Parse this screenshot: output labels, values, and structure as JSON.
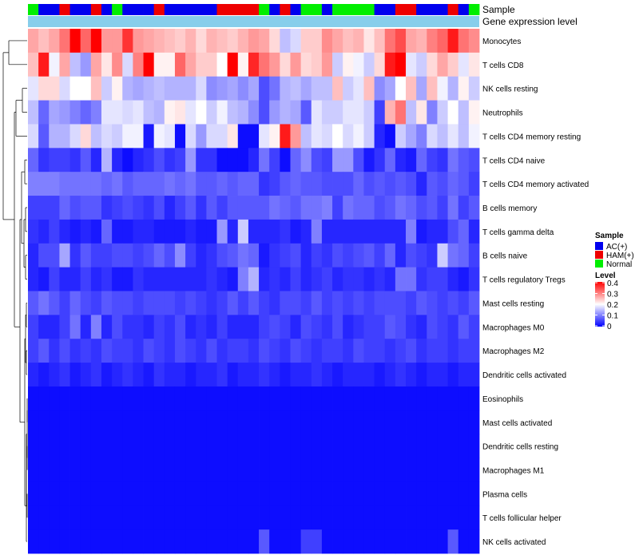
{
  "chart_data": {
    "type": "heatmap",
    "annotation_tracks": [
      "Sample",
      "Gene expression level"
    ],
    "sample_types": [
      "AC(+)",
      "HAM(+)",
      "Normal"
    ],
    "colors": {
      "AC(+)": "#0000ee",
      "HAM(+)": "#ee0000",
      "Normal": "#00ee00",
      "gene_expression": "#87ceeb",
      "scale_low": "#0000ff",
      "scale_mid": "#ffffff",
      "scale_high": "#ff0000"
    },
    "samples": [
      "Normal",
      "AC(+)",
      "AC(+)",
      "HAM(+)",
      "AC(+)",
      "AC(+)",
      "HAM(+)",
      "AC(+)",
      "Normal",
      "AC(+)",
      "AC(+)",
      "AC(+)",
      "HAM(+)",
      "AC(+)",
      "AC(+)",
      "AC(+)",
      "AC(+)",
      "AC(+)",
      "HAM(+)",
      "HAM(+)",
      "HAM(+)",
      "HAM(+)",
      "Normal",
      "AC(+)",
      "HAM(+)",
      "AC(+)",
      "Normal",
      "Normal",
      "AC(+)",
      "Normal",
      "Normal",
      "Normal",
      "Normal",
      "AC(+)",
      "AC(+)",
      "HAM(+)",
      "HAM(+)",
      "AC(+)",
      "AC(+)",
      "AC(+)",
      "HAM(+)",
      "AC(+)",
      "Normal"
    ],
    "rows": [
      "Monocytes",
      "T cells CD8",
      "NK cells resting",
      "Neutrophils",
      "T cells CD4 memory resting",
      "T cells CD4 naive",
      "T cells CD4 memory activated",
      "B cells memory",
      "T cells gamma delta",
      "B cells naive",
      "T cells regulatory  Tregs",
      "Mast cells resting",
      "Macrophages M0",
      "Macrophages M2",
      "Dendritic cells activated",
      "Eosinophils",
      "Mast cells activated",
      "Dendritic cells resting",
      "Macrophages M1",
      "Plasma cells",
      "T cells follicular helper",
      "NK cells activated"
    ],
    "values": [
      [
        0.27,
        0.25,
        0.27,
        0.31,
        0.4,
        0.32,
        0.4,
        0.28,
        0.28,
        0.36,
        0.28,
        0.27,
        0.26,
        0.25,
        0.24,
        0.26,
        0.23,
        0.26,
        0.25,
        0.24,
        0.26,
        0.28,
        0.27,
        0.23,
        0.15,
        0.17,
        0.24,
        0.24,
        0.29,
        0.27,
        0.25,
        0.26,
        0.22,
        0.25,
        0.31,
        0.34,
        0.27,
        0.26,
        0.3,
        0.32,
        0.38,
        0.31,
        0.29
      ],
      [
        0.25,
        0.38,
        0.19,
        0.27,
        0.15,
        0.12,
        0.27,
        0.22,
        0.29,
        0.17,
        0.3,
        0.4,
        0.21,
        0.21,
        0.32,
        0.27,
        0.24,
        0.24,
        0.2,
        0.4,
        0.21,
        0.37,
        0.31,
        0.28,
        0.23,
        0.28,
        0.23,
        0.24,
        0.28,
        0.16,
        0.21,
        0.19,
        0.16,
        0.23,
        0.38,
        0.4,
        0.18,
        0.16,
        0.23,
        0.27,
        0.24,
        0.18,
        0.22
      ],
      [
        0.18,
        0.23,
        0.23,
        0.17,
        0.2,
        0.2,
        0.25,
        0.16,
        0.21,
        0.14,
        0.13,
        0.14,
        0.15,
        0.14,
        0.14,
        0.14,
        0.17,
        0.11,
        0.12,
        0.13,
        0.11,
        0.13,
        0.06,
        0.09,
        0.14,
        0.15,
        0.13,
        0.15,
        0.15,
        0.25,
        0.16,
        0.18,
        0.25,
        0.11,
        0.13,
        0.2,
        0.25,
        0.13,
        0.25,
        0.19,
        0.14,
        0.21,
        0.16
      ],
      [
        0.15,
        0.08,
        0.13,
        0.12,
        0.1,
        0.08,
        0.1,
        0.18,
        0.18,
        0.17,
        0.18,
        0.15,
        0.14,
        0.21,
        0.22,
        0.18,
        0.2,
        0.16,
        0.19,
        0.15,
        0.14,
        0.11,
        0.06,
        0.12,
        0.14,
        0.13,
        0.07,
        0.18,
        0.16,
        0.16,
        0.18,
        0.18,
        0.16,
        0.05,
        0.26,
        0.31,
        0.15,
        0.22,
        0.1,
        0.16,
        0.2,
        0.15,
        0.21
      ],
      [
        0.17,
        0.07,
        0.14,
        0.14,
        0.17,
        0.23,
        0.15,
        0.17,
        0.16,
        0.19,
        0.19,
        0.02,
        0.19,
        0.18,
        0.01,
        0.17,
        0.12,
        0.17,
        0.17,
        0.22,
        0.01,
        0.01,
        0.18,
        0.21,
        0.38,
        0.28,
        0.15,
        0.18,
        0.17,
        0.2,
        0.17,
        0.19,
        0.16,
        0.03,
        0.01,
        0.16,
        0.13,
        0.1,
        0.17,
        0.15,
        0.18,
        0.15,
        0.19
      ],
      [
        0.08,
        0.04,
        0.05,
        0.05,
        0.04,
        0.07,
        0.03,
        0.14,
        0.03,
        0.01,
        0.03,
        0.04,
        0.06,
        0.04,
        0.05,
        0.12,
        0.04,
        0.04,
        0.01,
        0.01,
        0.01,
        0.03,
        0.09,
        0.05,
        0.01,
        0.08,
        0.11,
        0.06,
        0.05,
        0.12,
        0.12,
        0.06,
        0.02,
        0.04,
        0.08,
        0.03,
        0.02,
        0.08,
        0.05,
        0.04,
        0.09,
        0.07,
        0.06
      ],
      [
        0.1,
        0.1,
        0.1,
        0.09,
        0.09,
        0.09,
        0.09,
        0.08,
        0.09,
        0.07,
        0.08,
        0.08,
        0.08,
        0.09,
        0.08,
        0.09,
        0.07,
        0.07,
        0.08,
        0.07,
        0.08,
        0.08,
        0.04,
        0.05,
        0.07,
        0.08,
        0.07,
        0.07,
        0.06,
        0.06,
        0.06,
        0.08,
        0.06,
        0.07,
        0.06,
        0.07,
        0.06,
        0.03,
        0.07,
        0.06,
        0.08,
        0.07,
        0.05
      ],
      [
        0.05,
        0.05,
        0.05,
        0.08,
        0.06,
        0.07,
        0.07,
        0.04,
        0.05,
        0.06,
        0.05,
        0.04,
        0.06,
        0.03,
        0.05,
        0.07,
        0.04,
        0.07,
        0.05,
        0.07,
        0.07,
        0.07,
        0.07,
        0.09,
        0.08,
        0.07,
        0.09,
        0.09,
        0.1,
        0.05,
        0.09,
        0.08,
        0.08,
        0.06,
        0.07,
        0.09,
        0.08,
        0.06,
        0.07,
        0.05,
        0.09,
        0.05,
        0.07
      ],
      [
        0.04,
        0.03,
        0.05,
        0.03,
        0.02,
        0.03,
        0.02,
        0.08,
        0.02,
        0.02,
        0.03,
        0.03,
        0.02,
        0.02,
        0.02,
        0.03,
        0.02,
        0.02,
        0.12,
        0.03,
        0.16,
        0.03,
        0.03,
        0.03,
        0.04,
        0.02,
        0.03,
        0.1,
        0.03,
        0.03,
        0.03,
        0.03,
        0.03,
        0.03,
        0.03,
        0.03,
        0.1,
        0.02,
        0.03,
        0.03,
        0.06,
        0.08,
        0.03
      ],
      [
        0.03,
        0.06,
        0.06,
        0.13,
        0.04,
        0.07,
        0.05,
        0.05,
        0.06,
        0.06,
        0.05,
        0.06,
        0.08,
        0.06,
        0.11,
        0.05,
        0.03,
        0.04,
        0.06,
        0.07,
        0.09,
        0.08,
        0.02,
        0.04,
        0.05,
        0.06,
        0.03,
        0.05,
        0.04,
        0.06,
        0.05,
        0.06,
        0.07,
        0.05,
        0.08,
        0.03,
        0.06,
        0.05,
        0.04,
        0.16,
        0.09,
        0.08,
        0.05
      ],
      [
        0.03,
        0.02,
        0.05,
        0.03,
        0.03,
        0.05,
        0.03,
        0.04,
        0.02,
        0.02,
        0.04,
        0.03,
        0.03,
        0.03,
        0.03,
        0.03,
        0.03,
        0.04,
        0.03,
        0.02,
        0.1,
        0.14,
        0.03,
        0.04,
        0.03,
        0.05,
        0.03,
        0.04,
        0.05,
        0.03,
        0.04,
        0.04,
        0.03,
        0.04,
        0.03,
        0.09,
        0.09,
        0.04,
        0.05,
        0.05,
        0.03,
        0.02,
        0.04
      ],
      [
        0.07,
        0.09,
        0.07,
        0.05,
        0.08,
        0.06,
        0.05,
        0.07,
        0.06,
        0.06,
        0.05,
        0.06,
        0.06,
        0.06,
        0.05,
        0.06,
        0.05,
        0.04,
        0.05,
        0.07,
        0.05,
        0.07,
        0.05,
        0.04,
        0.06,
        0.06,
        0.05,
        0.07,
        0.05,
        0.06,
        0.05,
        0.06,
        0.05,
        0.06,
        0.06,
        0.06,
        0.05,
        0.07,
        0.06,
        0.05,
        0.06,
        0.05,
        0.07
      ],
      [
        0.05,
        0.03,
        0.03,
        0.05,
        0.09,
        0.03,
        0.1,
        0.03,
        0.06,
        0.04,
        0.04,
        0.03,
        0.05,
        0.04,
        0.06,
        0.03,
        0.04,
        0.03,
        0.05,
        0.03,
        0.03,
        0.03,
        0.05,
        0.06,
        0.05,
        0.03,
        0.06,
        0.05,
        0.04,
        0.06,
        0.03,
        0.04,
        0.05,
        0.05,
        0.07,
        0.06,
        0.04,
        0.03,
        0.06,
        0.05,
        0.04,
        0.07,
        0.05
      ],
      [
        0.05,
        0.07,
        0.04,
        0.06,
        0.04,
        0.05,
        0.04,
        0.06,
        0.05,
        0.05,
        0.04,
        0.06,
        0.05,
        0.04,
        0.06,
        0.05,
        0.04,
        0.06,
        0.04,
        0.05,
        0.05,
        0.04,
        0.06,
        0.05,
        0.04,
        0.06,
        0.05,
        0.04,
        0.05,
        0.05,
        0.04,
        0.06,
        0.05,
        0.05,
        0.04,
        0.05,
        0.06,
        0.04,
        0.05,
        0.05,
        0.04,
        0.05,
        0.05
      ],
      [
        0.03,
        0.02,
        0.03,
        0.04,
        0.02,
        0.03,
        0.04,
        0.02,
        0.03,
        0.04,
        0.03,
        0.02,
        0.04,
        0.03,
        0.03,
        0.02,
        0.03,
        0.03,
        0.04,
        0.02,
        0.03,
        0.03,
        0.04,
        0.03,
        0.02,
        0.03,
        0.03,
        0.04,
        0.03,
        0.02,
        0.03,
        0.03,
        0.03,
        0.02,
        0.03,
        0.04,
        0.03,
        0.02,
        0.03,
        0.03,
        0.02,
        0.03,
        0.03
      ],
      [
        0.01,
        0.01,
        0.01,
        0.01,
        0.01,
        0.01,
        0.01,
        0.01,
        0.01,
        0.01,
        0.01,
        0.01,
        0.01,
        0.01,
        0.01,
        0.01,
        0.01,
        0.01,
        0.01,
        0.01,
        0.01,
        0.01,
        0.01,
        0.01,
        0.01,
        0.01,
        0.01,
        0.01,
        0.01,
        0.01,
        0.01,
        0.01,
        0.01,
        0.01,
        0.01,
        0.01,
        0.01,
        0.01,
        0.01,
        0.01,
        0.01,
        0.01,
        0.01
      ],
      [
        0.01,
        0.01,
        0.01,
        0.01,
        0.01,
        0.01,
        0.01,
        0.01,
        0.01,
        0.01,
        0.01,
        0.01,
        0.01,
        0.01,
        0.01,
        0.01,
        0.01,
        0.01,
        0.01,
        0.01,
        0.01,
        0.01,
        0.01,
        0.01,
        0.01,
        0.01,
        0.01,
        0.01,
        0.01,
        0.01,
        0.01,
        0.01,
        0.01,
        0.01,
        0.01,
        0.01,
        0.01,
        0.01,
        0.01,
        0.01,
        0.01,
        0.01,
        0.01
      ],
      [
        0.01,
        0.01,
        0.01,
        0.01,
        0.01,
        0.01,
        0.01,
        0.01,
        0.01,
        0.01,
        0.01,
        0.01,
        0.01,
        0.01,
        0.01,
        0.01,
        0.01,
        0.01,
        0.01,
        0.01,
        0.01,
        0.01,
        0.01,
        0.01,
        0.01,
        0.01,
        0.01,
        0.01,
        0.01,
        0.01,
        0.01,
        0.01,
        0.01,
        0.01,
        0.01,
        0.01,
        0.01,
        0.01,
        0.01,
        0.01,
        0.01,
        0.01,
        0.01
      ],
      [
        0.01,
        0.01,
        0.01,
        0.01,
        0.01,
        0.01,
        0.01,
        0.01,
        0.01,
        0.01,
        0.01,
        0.01,
        0.01,
        0.01,
        0.01,
        0.01,
        0.01,
        0.01,
        0.01,
        0.01,
        0.01,
        0.01,
        0.01,
        0.01,
        0.01,
        0.01,
        0.01,
        0.01,
        0.01,
        0.01,
        0.01,
        0.01,
        0.01,
        0.01,
        0.01,
        0.01,
        0.01,
        0.01,
        0.01,
        0.01,
        0.01,
        0.01,
        0.01
      ],
      [
        0.01,
        0.01,
        0.01,
        0.01,
        0.01,
        0.01,
        0.01,
        0.01,
        0.01,
        0.01,
        0.01,
        0.01,
        0.01,
        0.01,
        0.01,
        0.01,
        0.01,
        0.01,
        0.01,
        0.01,
        0.01,
        0.01,
        0.01,
        0.01,
        0.01,
        0.01,
        0.01,
        0.01,
        0.01,
        0.01,
        0.01,
        0.01,
        0.01,
        0.01,
        0.01,
        0.01,
        0.01,
        0.01,
        0.01,
        0.01,
        0.01,
        0.01,
        0.01
      ],
      [
        0.01,
        0.01,
        0.01,
        0.01,
        0.01,
        0.01,
        0.01,
        0.01,
        0.01,
        0.01,
        0.01,
        0.01,
        0.01,
        0.01,
        0.01,
        0.01,
        0.01,
        0.01,
        0.01,
        0.01,
        0.01,
        0.01,
        0.01,
        0.01,
        0.01,
        0.01,
        0.01,
        0.01,
        0.01,
        0.01,
        0.01,
        0.01,
        0.01,
        0.01,
        0.01,
        0.01,
        0.01,
        0.01,
        0.01,
        0.01,
        0.01,
        0.01,
        0.01
      ],
      [
        0.01,
        0.01,
        0.01,
        0.01,
        0.01,
        0.01,
        0.01,
        0.01,
        0.01,
        0.01,
        0.01,
        0.01,
        0.01,
        0.01,
        0.01,
        0.01,
        0.01,
        0.01,
        0.01,
        0.01,
        0.01,
        0.01,
        0.07,
        0.01,
        0.01,
        0.01,
        0.05,
        0.05,
        0.01,
        0.01,
        0.01,
        0.01,
        0.01,
        0.01,
        0.01,
        0.01,
        0.01,
        0.01,
        0.01,
        0.01,
        0.07,
        0.01,
        0.01
      ]
    ],
    "legend": {
      "sample_title": "Sample",
      "level_title": "Level",
      "ticks": [
        "0.4",
        "0.3",
        "0.2",
        "0.1",
        "0"
      ],
      "placement": "right"
    },
    "zlim": [
      0,
      0.4
    ]
  }
}
